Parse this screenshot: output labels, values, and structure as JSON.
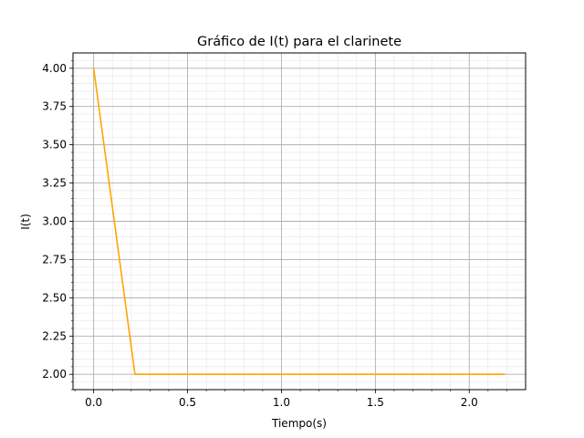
{
  "chart_data": {
    "type": "line",
    "title": "Gráfico de I(t) para el clarinete",
    "xlabel": "Tiempo(s)",
    "ylabel": "I(t)",
    "xlim": [
      -0.11,
      2.3
    ],
    "ylim": [
      1.9,
      4.1
    ],
    "x_ticks": [
      0.0,
      0.5,
      1.0,
      1.5,
      2.0
    ],
    "x_tick_labels": [
      "0.0",
      "0.5",
      "1.0",
      "1.5",
      "2.0"
    ],
    "y_ticks": [
      2.0,
      2.25,
      2.5,
      2.75,
      3.0,
      3.25,
      3.5,
      3.75,
      4.0
    ],
    "y_tick_labels": [
      "2.00",
      "2.25",
      "2.50",
      "2.75",
      "3.00",
      "3.25",
      "3.50",
      "3.75",
      "4.00"
    ],
    "x_minor_step": 0.1,
    "y_minor_step": 0.05,
    "grid": true,
    "minor_grid": true,
    "series": [
      {
        "color": "#ffa500",
        "x": [
          0.0,
          0.22,
          2.19
        ],
        "y": [
          4.0,
          2.0,
          2.0
        ]
      }
    ]
  }
}
